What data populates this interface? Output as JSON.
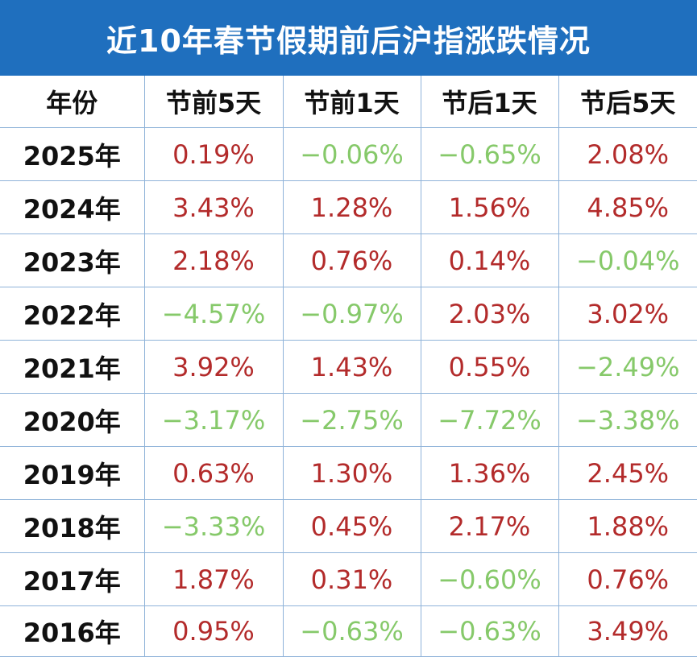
{
  "colors": {
    "header_bg": "#1f6fbe",
    "up": "#b32b2b",
    "down": "#86c96a",
    "grid": "#8fb3d9"
  },
  "chart_data": {
    "type": "table",
    "title": "近10年春节假期前后沪指涨跌情况",
    "columns": [
      "年份",
      "节前5天",
      "节前1天",
      "节后1天",
      "节后5天"
    ],
    "rows": [
      {
        "year": "2025年",
        "cells": [
          "0.19%",
          "−0.06%",
          "−0.65%",
          "2.08%"
        ]
      },
      {
        "year": "2024年",
        "cells": [
          "3.43%",
          "1.28%",
          "1.56%",
          "4.85%"
        ]
      },
      {
        "year": "2023年",
        "cells": [
          "2.18%",
          "0.76%",
          "0.14%",
          "−0.04%"
        ]
      },
      {
        "year": "2022年",
        "cells": [
          "−4.57%",
          "−0.97%",
          "2.03%",
          "3.02%"
        ]
      },
      {
        "year": "2021年",
        "cells": [
          "3.92%",
          "1.43%",
          "0.55%",
          "−2.49%"
        ]
      },
      {
        "year": "2020年",
        "cells": [
          "−3.17%",
          "−2.75%",
          "−7.72%",
          "−3.38%"
        ]
      },
      {
        "year": "2019年",
        "cells": [
          "0.63%",
          "1.30%",
          "1.36%",
          "2.45%"
        ]
      },
      {
        "year": "2018年",
        "cells": [
          "−3.33%",
          "0.45%",
          "2.17%",
          "1.88%"
        ]
      },
      {
        "year": "2017年",
        "cells": [
          "1.87%",
          "0.31%",
          "−0.60%",
          "0.76%"
        ]
      },
      {
        "year": "2016年",
        "cells": [
          "0.95%",
          "−0.63%",
          "−0.63%",
          "3.49%"
        ]
      }
    ]
  }
}
